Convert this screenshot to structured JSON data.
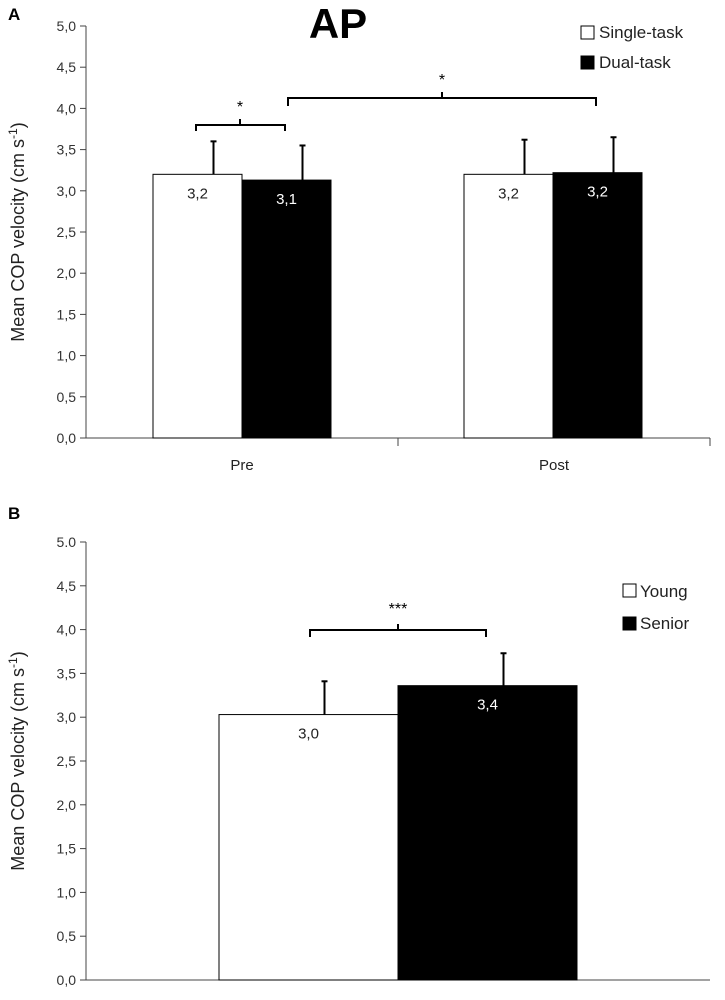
{
  "chart_data": [
    {
      "panel": "A",
      "type": "bar",
      "title": "AP",
      "ylabel": "Mean COP velocity (cm s-1)",
      "ylabel_main": "Mean COP velocity (cm s",
      "ylabel_sup": "-1",
      "ylabel_close": ")",
      "ylim": [
        0,
        5
      ],
      "yticks": [
        "0,0",
        "0,5",
        "1,0",
        "1,5",
        "2,0",
        "2,5",
        "3,0",
        "3,5",
        "4,0",
        "4,5",
        "5,0"
      ],
      "categories": [
        "Pre",
        "Post"
      ],
      "series": [
        {
          "name": "Single-task",
          "color": "#ffffff",
          "values": [
            3.2,
            3.2
          ],
          "errors": [
            0.4,
            0.42
          ],
          "labels": [
            "3,2",
            "3,2"
          ]
        },
        {
          "name": "Dual-task",
          "color": "#000000",
          "values": [
            3.13,
            3.22
          ],
          "errors": [
            0.42,
            0.43
          ],
          "labels": [
            "3,1",
            "3,2"
          ]
        }
      ],
      "significance": [
        {
          "label": "*",
          "from": "Pre / Single-task",
          "to": "Pre / Dual-task",
          "level": 3.75
        },
        {
          "label": "*",
          "from": "Pre / Dual-task",
          "to": "Post / Dual-task",
          "level": 4.07
        }
      ],
      "legend": "top-right"
    },
    {
      "panel": "B",
      "type": "bar",
      "title": "",
      "ylabel": "Mean COP velocity (cm s-1)",
      "ylabel_main": "Mean COP velocity (cm s",
      "ylabel_sup": "-1",
      "ylabel_close": ")",
      "ylim": [
        0,
        5
      ],
      "yticks": [
        "0,0",
        "0,5",
        "1,0",
        "1,5",
        "2,0",
        "2,5",
        "3,0",
        "3,5",
        "4,0",
        "4,5",
        "5.0"
      ],
      "categories": [
        ""
      ],
      "series": [
        {
          "name": "Young",
          "color": "#ffffff",
          "values": [
            3.03
          ],
          "errors": [
            0.38
          ],
          "labels": [
            "3,0"
          ]
        },
        {
          "name": "Senior",
          "color": "#000000",
          "values": [
            3.36
          ],
          "errors": [
            0.37
          ],
          "labels": [
            "3,4"
          ]
        }
      ],
      "significance": [
        {
          "label": "***",
          "from": "Young",
          "to": "Senior",
          "level": 4.0
        }
      ],
      "legend": "right"
    }
  ]
}
